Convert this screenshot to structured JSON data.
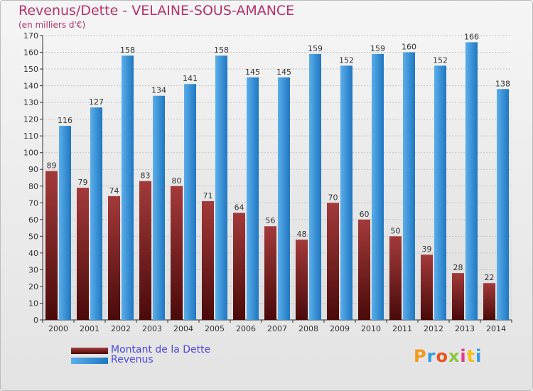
{
  "header": {
    "title": "Revenus/Dette - VELAINE-SOUS-AMANCE",
    "subtitle": "(en milliers d'€)"
  },
  "legend": {
    "items": [
      {
        "label": "Montant de la Dette"
      },
      {
        "label": "Revenus"
      }
    ]
  },
  "logo": {
    "text": "Proxiti"
  },
  "colors": {
    "dette_dark": "#4a0a0a",
    "dette_light": "#a33a3a",
    "revenus_dark": "#1f77c0",
    "revenus_light": "#5aaeea",
    "title": "#b5336a",
    "legend_text": "#4a4ae0"
  },
  "chart_data": {
    "type": "bar",
    "title": "Revenus/Dette - VELAINE-SOUS-AMANCE",
    "ylabel": "(en milliers d'€)",
    "xlabel": "",
    "categories": [
      "2000",
      "2001",
      "2002",
      "2003",
      "2004",
      "2005",
      "2006",
      "2007",
      "2008",
      "2009",
      "2010",
      "2011",
      "2012",
      "2013",
      "2014"
    ],
    "series": [
      {
        "name": "Montant de la Dette",
        "values": [
          89,
          79,
          74,
          83,
          80,
          71,
          64,
          56,
          48,
          70,
          60,
          50,
          39,
          28,
          22
        ]
      },
      {
        "name": "Revenus",
        "values": [
          116,
          127,
          158,
          134,
          141,
          158,
          145,
          145,
          159,
          152,
          159,
          160,
          152,
          166,
          138
        ]
      }
    ],
    "ylim": [
      0,
      170
    ],
    "ytick_step": 10,
    "grid": true,
    "legend_position": "bottom-left"
  }
}
